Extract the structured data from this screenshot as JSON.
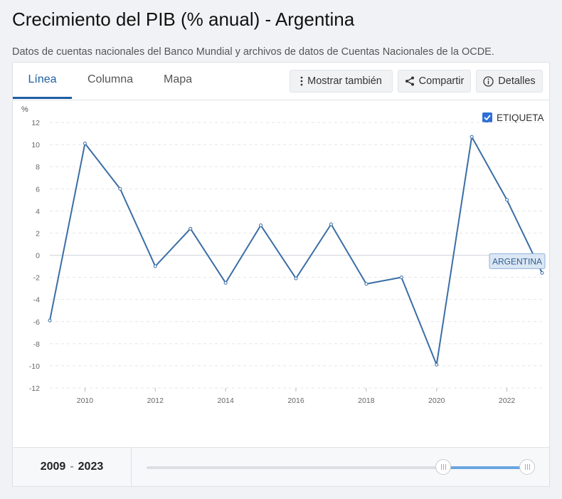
{
  "header": {
    "title": "Crecimiento del PIB (% anual) - Argentina",
    "subtitle": "Datos de cuentas nacionales del Banco Mundial y archivos de datos de Cuentas Nacionales de la OCDE."
  },
  "tabs": [
    {
      "label": "Línea",
      "active": true
    },
    {
      "label": "Columna",
      "active": false
    },
    {
      "label": "Mapa",
      "active": false
    }
  ],
  "toolbar": {
    "show_also_label": "Mostrar también",
    "share_label": "Compartir",
    "details_label": "Detalles"
  },
  "label_toggle": {
    "label": "ETIQUETA",
    "checked": true
  },
  "colors": {
    "accent": "#1c5fa3",
    "line": "#3a6ea5",
    "checkbox": "#2d6fd6"
  },
  "chart_data": {
    "type": "line",
    "ylabel": "%",
    "ylim": [
      -12,
      12
    ],
    "yticks": [
      12,
      10,
      8,
      6,
      4,
      2,
      0,
      -2,
      -4,
      -6,
      -8,
      -10,
      -12
    ],
    "xticks": [
      2010,
      2012,
      2014,
      2016,
      2018,
      2020,
      2022
    ],
    "xlim": [
      2009,
      2023
    ],
    "grid": true,
    "series": [
      {
        "name": "ARGENTINA",
        "x": [
          2009,
          2010,
          2011,
          2012,
          2013,
          2014,
          2015,
          2016,
          2017,
          2018,
          2019,
          2020,
          2021,
          2022,
          2023
        ],
        "values": [
          -5.9,
          10.1,
          6.0,
          -1.0,
          2.4,
          -2.5,
          2.7,
          -2.1,
          2.8,
          -2.6,
          -2.0,
          -9.9,
          10.7,
          5.0,
          -1.6
        ]
      }
    ]
  },
  "range": {
    "start": "2009",
    "end": "2023",
    "separator": "-"
  }
}
